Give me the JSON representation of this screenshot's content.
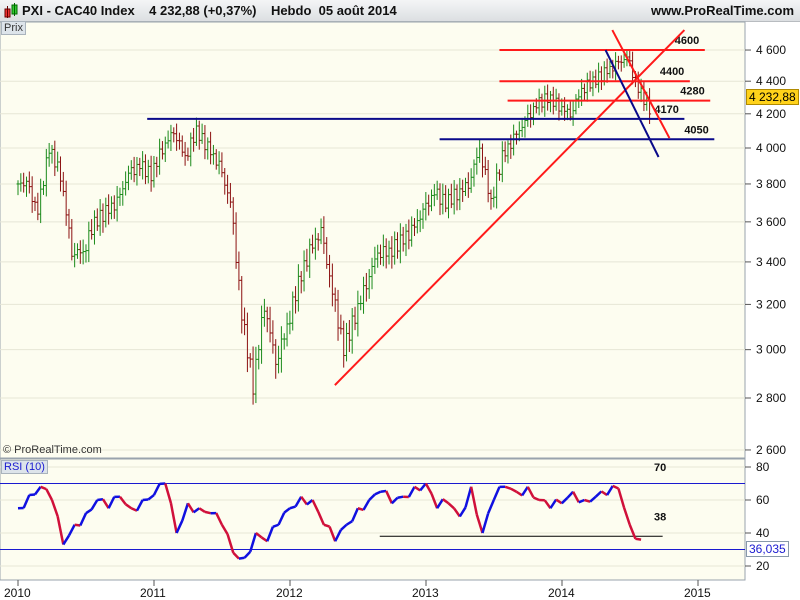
{
  "header": {
    "title": "PXI - CAC40 Index",
    "last": "4 232,88 (+0,37%)",
    "period": "Hebdo",
    "date": "05 août 2014",
    "site": "www.ProRealTime.com"
  },
  "price_panel": {
    "tag": "Prix",
    "copyright": "© ProRealTime.com",
    "last_label": "4 232,88"
  },
  "rsi_panel": {
    "tag": "RSI (10)",
    "last_label": "36,035"
  },
  "colors": {
    "up": "#1a8a1a",
    "down": "#8b1010",
    "rsi_up": "#1010e0",
    "rsi_down": "#d0103a",
    "red_line": "#ff1a1a",
    "blue_line": "#0a0a8a",
    "bg": "#fdfdf0",
    "last_bg": "#ffd21a"
  },
  "chart_data": [
    {
      "type": "bar",
      "subtype": "ohlc",
      "title": "PXI - CAC40 Index",
      "scale": "log",
      "ylim": [
        2600,
        4750
      ],
      "yticks": [
        2600,
        2800,
        3000,
        3200,
        3400,
        3600,
        3800,
        4000,
        4200,
        4400,
        4600
      ],
      "ytick_labels": [
        "2 600",
        "2 800",
        "3 000",
        "3 200",
        "3 400",
        "3 600",
        "3 800",
        "4 000",
        "4 200",
        "4 400",
        "4 600"
      ],
      "xticks": [
        "2010",
        "2011",
        "2012",
        "2013",
        "2014",
        "2015"
      ],
      "x_start": 2010.0,
      "x_step": 0.0833,
      "closes": [
        3800,
        3650,
        4000,
        3850,
        3450,
        3450,
        3600,
        3650,
        3700,
        3850,
        3900,
        3850,
        4000,
        4100,
        3950,
        4100,
        4000,
        3900,
        3700,
        3150,
        2850,
        3200,
        2950,
        3100,
        3300,
        3450,
        3550,
        3250,
        3000,
        3150,
        3300,
        3450,
        3450,
        3500,
        3550,
        3650,
        3750,
        3700,
        3750,
        3800,
        4000,
        3700,
        3950,
        4050,
        4150,
        4250,
        4300,
        4250,
        4200,
        4350,
        4400,
        4450,
        4500,
        4550,
        4350,
        4233
      ],
      "annotations": [
        {
          "kind": "hline",
          "value": 4600,
          "x": [
            2013.54,
            2015.05
          ],
          "color": "red",
          "label": "4600"
        },
        {
          "kind": "hline",
          "value": 4400,
          "x": [
            2013.54,
            2014.94
          ],
          "color": "red",
          "label": "4400"
        },
        {
          "kind": "hline",
          "value": 4280,
          "x": [
            2013.6,
            2015.09
          ],
          "color": "red",
          "label": "4280"
        },
        {
          "kind": "hline",
          "value": 4170,
          "x": [
            2010.95,
            2014.9
          ],
          "color": "blue",
          "label": "4170"
        },
        {
          "kind": "hline",
          "value": 4050,
          "x": [
            2013.1,
            2015.12
          ],
          "color": "blue",
          "label": "4050"
        },
        {
          "kind": "trend",
          "from": [
            2012.33,
            2852
          ],
          "to": [
            2014.9,
            4733
          ],
          "color": "red"
        },
        {
          "kind": "trend",
          "from": [
            2014.37,
            4733
          ],
          "to": [
            2014.79,
            4057
          ],
          "color": "red"
        },
        {
          "kind": "trend",
          "from": [
            2014.32,
            4600
          ],
          "to": [
            2014.71,
            3949
          ],
          "color": "blue"
        }
      ]
    },
    {
      "type": "line",
      "title": "RSI (10)",
      "ylim": [
        10,
        85
      ],
      "yticks": [
        20,
        40,
        60,
        80
      ],
      "ytick_labels": [
        "20",
        "40",
        "60",
        "80"
      ],
      "x_start": 2010.0,
      "x_step": 0.0833,
      "values": [
        55,
        63,
        68,
        60,
        33,
        45,
        52,
        60,
        55,
        62,
        55,
        60,
        63,
        70,
        40,
        58,
        55,
        52,
        45,
        28,
        25,
        40,
        35,
        45,
        55,
        62,
        60,
        45,
        35,
        45,
        55,
        60,
        65,
        58,
        62,
        68,
        70,
        55,
        58,
        50,
        68,
        40,
        60,
        68,
        65,
        68,
        60,
        55,
        58,
        65,
        60,
        62,
        63,
        67,
        45,
        36
      ],
      "levels": [
        {
          "value": 70,
          "label": "70"
        },
        {
          "value": 30,
          "label": ""
        },
        {
          "value": 38,
          "label": "38",
          "x": [
            2012.66,
            2014.74
          ]
        }
      ]
    }
  ]
}
